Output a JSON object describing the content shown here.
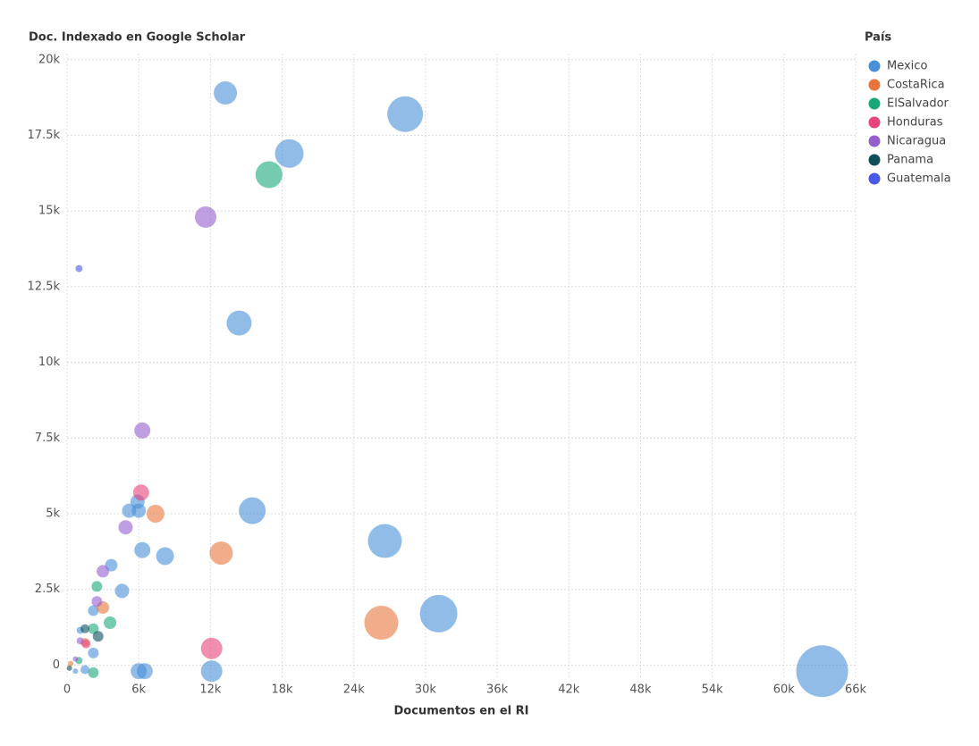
{
  "chart_data": {
    "type": "scatter",
    "title": "Doc. Indexado en Google Scholar",
    "x_label": "Documentos en el RI",
    "legend_title": "País",
    "legend_position": "right",
    "grid": true,
    "xlim": [
      0,
      66000
    ],
    "ylim": [
      -400,
      20200
    ],
    "xticks": [
      0,
      {
        "value": 6000,
        "label": "6k"
      },
      {
        "value": 12000,
        "label": "12k"
      },
      {
        "value": 18000,
        "label": "18k"
      },
      {
        "value": 24000,
        "label": "24k"
      },
      {
        "value": 30000,
        "label": "30k"
      },
      {
        "value": 36000,
        "label": "36k"
      },
      {
        "value": 42000,
        "label": "42k"
      },
      {
        "value": 48000,
        "label": "48k"
      },
      {
        "value": 54000,
        "label": "54k"
      },
      {
        "value": 60000,
        "label": "60k"
      },
      {
        "value": 66000,
        "label": "66k"
      }
    ],
    "yticks": [
      0,
      {
        "value": 2500,
        "label": "2.5k"
      },
      {
        "value": 5000,
        "label": "5k"
      },
      {
        "value": 7500,
        "label": "7.5k"
      },
      {
        "value": 10000,
        "label": "10k"
      },
      {
        "value": 12500,
        "label": "12.5k"
      },
      {
        "value": 15000,
        "label": "15k"
      },
      {
        "value": 17500,
        "label": "17.5k"
      },
      {
        "value": 20000,
        "label": "20k"
      }
    ],
    "series": [
      {
        "name": "Mexico",
        "color": "#4a90d9",
        "x": [
          13250,
          28300,
          18600,
          14400,
          15500,
          26600,
          31100,
          63200,
          12100,
          6000,
          6500,
          8200,
          6300,
          5900,
          6000,
          5200,
          4600,
          3700,
          2200,
          2200,
          1500,
          1100,
          700
        ],
        "y": [
          18900,
          18200,
          16900,
          11300,
          5100,
          4100,
          1700,
          -200,
          -200,
          -200,
          -200,
          3600,
          3800,
          5400,
          5100,
          5100,
          2450,
          3300,
          1800,
          400,
          -150,
          1150,
          -200
        ],
        "sizes": [
          169,
          400,
          256,
          196,
          225,
          361,
          441,
          841,
          144,
          81,
          81,
          100,
          81,
          64,
          64,
          64,
          64,
          49,
          36,
          36,
          25,
          16,
          9
        ]
      },
      {
        "name": "CostaRica",
        "color": "#e8743b",
        "x": [
          26300,
          12900,
          7400,
          3000,
          1500,
          300
        ],
        "y": [
          1400,
          3700,
          5000,
          1900,
          750,
          50
        ],
        "sizes": [
          361,
          169,
          100,
          49,
          25,
          9
        ]
      },
      {
        "name": "ElSalvador",
        "color": "#19a979",
        "x": [
          16900,
          2500,
          3600,
          2200,
          2200,
          1000
        ],
        "y": [
          16200,
          2600,
          1400,
          1200,
          -250,
          150
        ],
        "sizes": [
          225,
          36,
          49,
          36,
          36,
          16
        ]
      },
      {
        "name": "Honduras",
        "color": "#e8437a",
        "x": [
          12100,
          6200,
          1600
        ],
        "y": [
          550,
          5700,
          700
        ],
        "sizes": [
          144,
          81,
          25
        ]
      },
      {
        "name": "Nicaragua",
        "color": "#945ecf",
        "x": [
          11600,
          6300,
          4900,
          3000,
          2500,
          1100,
          700
        ],
        "y": [
          14800,
          7750,
          4550,
          3100,
          2100,
          800,
          200
        ],
        "sizes": [
          144,
          81,
          64,
          49,
          36,
          16,
          9
        ]
      },
      {
        "name": "Panama",
        "color": "#0f4f5a",
        "x": [
          2600,
          1500,
          200
        ],
        "y": [
          950,
          1200,
          -100
        ],
        "sizes": [
          36,
          25,
          9
        ]
      },
      {
        "name": "Guatemala",
        "color": "#4a58e8",
        "x": [
          1000
        ],
        "y": [
          13100
        ],
        "sizes": [
          16
        ]
      }
    ]
  }
}
